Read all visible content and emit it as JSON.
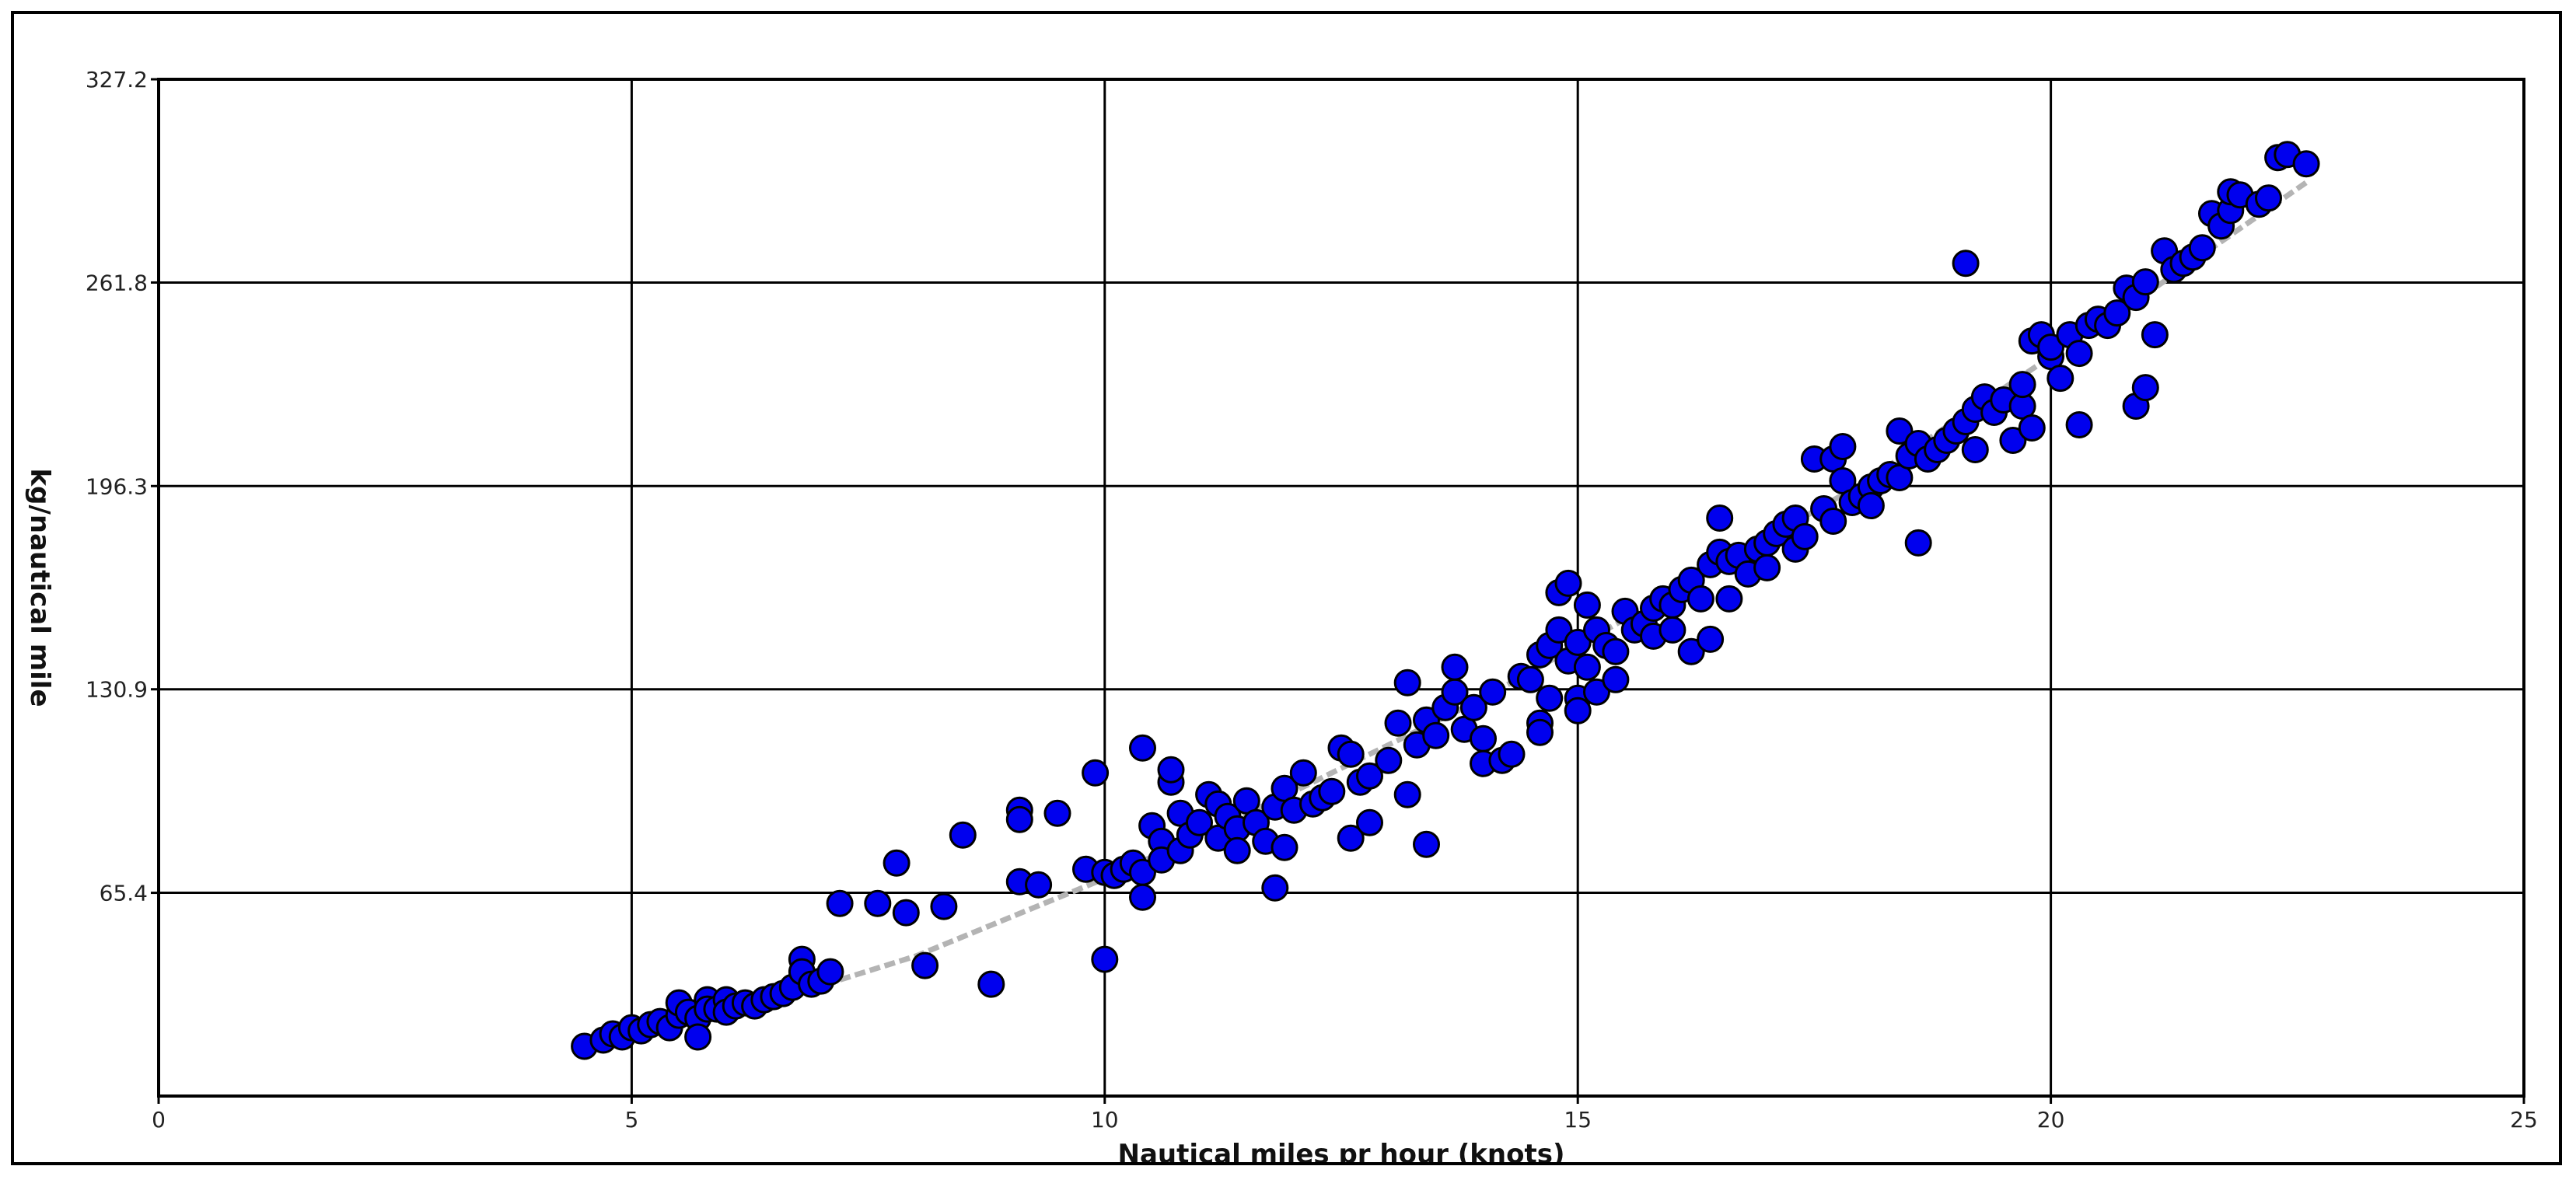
{
  "chart_data": {
    "type": "scatter",
    "title": "",
    "xlabel": "Nautical miles pr hour (knots)",
    "ylabel": "kg/nautical mile",
    "xlim": [
      0,
      25
    ],
    "ylim": [
      0,
      327.2
    ],
    "x_ticks": [
      "0",
      "5",
      "10",
      "15",
      "20",
      "25"
    ],
    "y_ticks": [
      "65.4",
      "130.9",
      "196.3",
      "261.8",
      "327.2"
    ],
    "grid": true,
    "legend": "none",
    "colors": {
      "points": "#0000ee",
      "point_edge": "#000000",
      "trend": "#b4b4b4",
      "grid": "#000000"
    },
    "series": [
      {
        "points": [
          [
            4.5,
            16
          ],
          [
            4.7,
            18
          ],
          [
            4.8,
            20
          ],
          [
            4.9,
            19
          ],
          [
            5.0,
            22
          ],
          [
            5.1,
            21
          ],
          [
            5.2,
            23
          ],
          [
            5.3,
            24
          ],
          [
            5.4,
            22
          ],
          [
            5.5,
            26
          ],
          [
            5.5,
            30
          ],
          [
            5.6,
            27
          ],
          [
            5.7,
            25
          ],
          [
            5.7,
            19
          ],
          [
            5.8,
            31
          ],
          [
            5.8,
            28
          ],
          [
            5.9,
            28
          ],
          [
            6.0,
            31
          ],
          [
            6.0,
            27
          ],
          [
            6.1,
            29
          ],
          [
            6.2,
            30
          ],
          [
            6.3,
            29
          ],
          [
            6.4,
            31
          ],
          [
            6.5,
            32
          ],
          [
            6.6,
            33
          ],
          [
            6.7,
            35
          ],
          [
            6.8,
            44
          ],
          [
            6.8,
            40
          ],
          [
            6.9,
            36
          ],
          [
            7.0,
            37
          ],
          [
            7.1,
            40
          ],
          [
            7.2,
            62
          ],
          [
            7.6,
            62
          ],
          [
            7.8,
            75
          ],
          [
            7.9,
            59
          ],
          [
            8.1,
            42
          ],
          [
            8.3,
            61
          ],
          [
            8.5,
            84
          ],
          [
            8.8,
            36
          ],
          [
            9.1,
            92
          ],
          [
            9.1,
            89
          ],
          [
            9.1,
            69
          ],
          [
            9.3,
            68
          ],
          [
            9.5,
            91
          ],
          [
            9.8,
            73
          ],
          [
            9.9,
            104
          ],
          [
            10.0,
            44
          ],
          [
            10.0,
            72
          ],
          [
            10.1,
            71
          ],
          [
            10.2,
            73
          ],
          [
            10.3,
            75
          ],
          [
            10.4,
            72
          ],
          [
            10.4,
            64
          ],
          [
            10.4,
            112
          ],
          [
            10.5,
            87
          ],
          [
            10.6,
            82
          ],
          [
            10.6,
            76
          ],
          [
            10.7,
            101
          ],
          [
            10.7,
            105
          ],
          [
            10.8,
            91
          ],
          [
            10.8,
            79
          ],
          [
            10.9,
            84
          ],
          [
            11.0,
            88
          ],
          [
            11.1,
            97
          ],
          [
            11.2,
            94
          ],
          [
            11.2,
            83
          ],
          [
            11.3,
            90
          ],
          [
            11.4,
            86
          ],
          [
            11.4,
            79
          ],
          [
            11.5,
            95
          ],
          [
            11.6,
            88
          ],
          [
            11.7,
            82
          ],
          [
            11.8,
            93
          ],
          [
            11.8,
            67
          ],
          [
            11.9,
            99
          ],
          [
            11.9,
            80
          ],
          [
            12.0,
            92
          ],
          [
            12.1,
            104
          ],
          [
            12.2,
            94
          ],
          [
            12.3,
            96
          ],
          [
            12.4,
            98
          ],
          [
            12.5,
            112
          ],
          [
            12.6,
            110
          ],
          [
            12.6,
            83
          ],
          [
            12.7,
            101
          ],
          [
            12.8,
            103
          ],
          [
            12.8,
            88
          ],
          [
            13.0,
            108
          ],
          [
            13.1,
            120
          ],
          [
            13.2,
            97
          ],
          [
            13.2,
            133
          ],
          [
            13.3,
            113
          ],
          [
            13.4,
            81
          ],
          [
            13.4,
            121
          ],
          [
            13.5,
            116
          ],
          [
            13.6,
            125
          ],
          [
            13.7,
            130
          ],
          [
            13.7,
            138
          ],
          [
            13.8,
            118
          ],
          [
            13.9,
            125
          ],
          [
            14.0,
            115
          ],
          [
            14.0,
            107
          ],
          [
            14.1,
            130
          ],
          [
            14.2,
            108
          ],
          [
            14.3,
            110
          ],
          [
            14.4,
            135
          ],
          [
            14.5,
            134
          ],
          [
            14.6,
            142
          ],
          [
            14.6,
            120
          ],
          [
            14.6,
            117
          ],
          [
            14.7,
            128
          ],
          [
            14.7,
            145
          ],
          [
            14.8,
            162
          ],
          [
            14.8,
            150
          ],
          [
            14.9,
            165
          ],
          [
            14.9,
            140
          ],
          [
            15.0,
            146
          ],
          [
            15.0,
            128
          ],
          [
            15.0,
            124
          ],
          [
            15.1,
            138
          ],
          [
            15.1,
            158
          ],
          [
            15.2,
            150
          ],
          [
            15.2,
            130
          ],
          [
            15.3,
            145
          ],
          [
            15.4,
            143
          ],
          [
            15.4,
            134
          ],
          [
            15.5,
            156
          ],
          [
            15.6,
            150
          ],
          [
            15.7,
            152
          ],
          [
            15.8,
            157
          ],
          [
            15.8,
            148
          ],
          [
            15.9,
            160
          ],
          [
            16.0,
            158
          ],
          [
            16.0,
            150
          ],
          [
            16.1,
            163
          ],
          [
            16.2,
            166
          ],
          [
            16.2,
            143
          ],
          [
            16.3,
            160
          ],
          [
            16.4,
            171
          ],
          [
            16.4,
            147
          ],
          [
            16.5,
            186
          ],
          [
            16.5,
            175
          ],
          [
            16.6,
            172
          ],
          [
            16.6,
            160
          ],
          [
            16.7,
            174
          ],
          [
            16.8,
            168
          ],
          [
            16.9,
            176
          ],
          [
            17.0,
            178
          ],
          [
            17.0,
            170
          ],
          [
            17.1,
            181
          ],
          [
            17.2,
            184
          ],
          [
            17.3,
            186
          ],
          [
            17.3,
            176
          ],
          [
            17.4,
            180
          ],
          [
            17.5,
            205
          ],
          [
            17.6,
            189
          ],
          [
            17.7,
            185
          ],
          [
            17.7,
            205
          ],
          [
            17.8,
            198
          ],
          [
            17.8,
            209
          ],
          [
            17.9,
            191
          ],
          [
            18.0,
            193
          ],
          [
            18.1,
            196
          ],
          [
            18.1,
            190
          ],
          [
            18.2,
            198
          ],
          [
            18.3,
            200
          ],
          [
            18.4,
            199
          ],
          [
            18.4,
            214
          ],
          [
            18.5,
            206
          ],
          [
            18.6,
            210
          ],
          [
            18.6,
            178
          ],
          [
            18.7,
            205
          ],
          [
            18.8,
            208
          ],
          [
            18.9,
            211
          ],
          [
            19.0,
            214
          ],
          [
            19.1,
            217
          ],
          [
            19.1,
            268
          ],
          [
            19.2,
            208
          ],
          [
            19.2,
            221
          ],
          [
            19.3,
            225
          ],
          [
            19.4,
            220
          ],
          [
            19.5,
            224
          ],
          [
            19.6,
            211
          ],
          [
            19.7,
            222
          ],
          [
            19.7,
            229
          ],
          [
            19.8,
            243
          ],
          [
            19.8,
            215
          ],
          [
            19.9,
            245
          ],
          [
            20.0,
            238
          ],
          [
            20.0,
            241
          ],
          [
            20.1,
            231
          ],
          [
            20.2,
            245
          ],
          [
            20.3,
            239
          ],
          [
            20.3,
            216
          ],
          [
            20.4,
            248
          ],
          [
            20.5,
            250
          ],
          [
            20.6,
            248
          ],
          [
            20.7,
            252
          ],
          [
            20.8,
            260
          ],
          [
            20.9,
            257
          ],
          [
            20.9,
            222
          ],
          [
            21.0,
            228
          ],
          [
            21.0,
            262
          ],
          [
            21.1,
            245
          ],
          [
            21.2,
            272
          ],
          [
            21.3,
            266
          ],
          [
            21.4,
            268
          ],
          [
            21.5,
            270
          ],
          [
            21.6,
            273
          ],
          [
            21.7,
            284
          ],
          [
            21.8,
            280
          ],
          [
            21.9,
            285
          ],
          [
            21.9,
            291
          ],
          [
            22.0,
            290
          ],
          [
            22.2,
            287
          ],
          [
            22.3,
            289
          ],
          [
            22.4,
            302
          ],
          [
            22.5,
            303
          ],
          [
            22.7,
            300
          ]
        ]
      }
    ],
    "trendline": [
      [
        4.5,
        16
      ],
      [
        6,
        26
      ],
      [
        8,
        45
      ],
      [
        10,
        70
      ],
      [
        12,
        98
      ],
      [
        14,
        128
      ],
      [
        16,
        162
      ],
      [
        18,
        197
      ],
      [
        20,
        238
      ],
      [
        21,
        258
      ],
      [
        22.7,
        294
      ]
    ]
  }
}
